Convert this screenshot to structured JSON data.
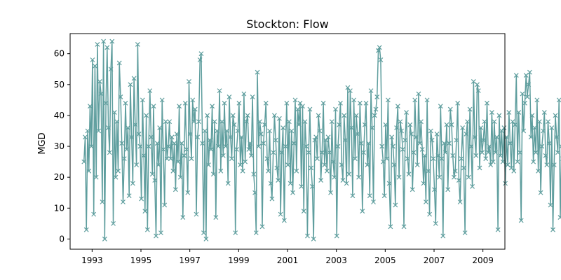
{
  "chart_data": {
    "type": "line",
    "title": "Stockton: Flow",
    "xlabel": "",
    "ylabel": "MGD",
    "xlim": [
      1992.1,
      2009.9
    ],
    "ylim": [
      -3.3,
      66.5
    ],
    "x_ticks": [
      1993,
      1995,
      1997,
      1999,
      2001,
      2003,
      2005,
      2007,
      2009
    ],
    "x_tick_labels": [
      "1993",
      "1995",
      "1997",
      "1999",
      "2001",
      "2003",
      "2005",
      "2007",
      "2009"
    ],
    "y_ticks": [
      0,
      10,
      20,
      30,
      40,
      50,
      60
    ],
    "y_tick_labels": [
      "0",
      "10",
      "20",
      "30",
      "40",
      "50",
      "60"
    ],
    "grid": false,
    "marker": "x",
    "colors": {
      "series": "#5f9e9e"
    },
    "series": [
      {
        "x_start": "1992-09",
        "x_step_years": 0.05,
        "values": [
          25,
          33,
          3,
          35,
          22,
          43,
          30,
          58,
          8,
          56,
          20,
          63,
          35,
          51,
          47,
          12,
          64,
          0,
          44,
          62,
          36,
          28,
          55,
          64,
          5,
          41,
          20,
          38,
          22,
          57,
          46,
          31,
          12,
          26,
          44,
          29,
          36,
          14,
          50,
          33,
          18,
          52,
          37,
          24,
          63,
          34,
          30,
          13,
          45,
          27,
          9,
          40,
          3,
          30,
          48,
          33,
          21,
          43,
          19,
          1,
          31,
          24,
          36,
          2,
          45,
          29,
          11,
          38,
          26,
          30,
          38,
          26,
          33,
          22,
          31,
          16,
          34,
          25,
          43,
          20,
          31,
          7,
          27,
          44,
          29,
          15,
          51,
          34,
          26,
          45,
          38,
          42,
          8,
          33,
          38,
          58,
          60,
          31,
          2,
          35,
          0,
          40,
          24,
          32,
          29,
          43,
          21,
          38,
          7,
          35,
          30,
          48,
          22,
          38,
          27,
          44,
          30,
          35,
          18,
          46,
          33,
          26,
          40,
          37,
          2,
          29,
          35,
          44,
          24,
          33,
          22,
          47,
          25,
          38,
          40,
          29,
          31,
          27,
          46,
          21,
          15,
          2,
          54,
          30,
          38,
          34,
          4,
          31,
          37,
          44,
          26,
          22,
          35,
          18,
          13,
          28,
          40,
          32,
          23,
          19,
          39,
          8,
          28,
          36,
          6,
          30,
          44,
          24,
          38,
          18,
          35,
          15,
          31,
          45,
          22,
          42,
          37,
          44,
          17,
          43,
          9,
          38,
          30,
          1,
          28,
          42,
          23,
          17,
          0,
          32,
          33,
          26,
          40,
          35,
          19,
          28,
          44,
          24,
          32,
          22,
          33,
          28,
          15,
          38,
          25,
          20,
          42,
          1,
          30,
          37,
          44,
          24,
          19,
          40,
          32,
          18,
          49,
          21,
          48,
          36,
          14,
          45,
          26,
          40,
          34,
          20,
          44,
          31,
          9,
          28,
          37,
          44,
          24,
          31,
          14,
          48,
          36,
          12,
          40,
          42,
          46,
          61,
          62,
          58,
          30,
          25,
          14,
          37,
          26,
          45,
          18,
          4,
          33,
          30,
          24,
          11,
          36,
          43,
          20,
          38,
          35,
          29,
          4,
          32,
          41,
          26,
          21,
          37,
          34,
          16,
          28,
          45,
          33,
          24,
          47,
          31,
          38,
          29,
          18,
          27,
          12,
          45,
          22,
          8,
          35,
          32,
          26,
          16,
          5,
          34,
          27,
          20,
          43,
          26,
          1,
          31,
          28,
          37,
          16,
          31,
          42,
          37,
          27,
          20,
          22,
          32,
          44,
          19,
          12,
          26,
          36,
          23,
          2,
          34,
          38,
          20,
          42,
          30,
          17,
          51,
          33,
          27,
          50,
          48,
          23,
          36,
          28,
          32,
          38,
          26,
          44,
          28,
          30,
          24,
          41,
          25,
          38,
          28,
          33,
          3,
          40,
          27,
          35,
          25,
          36,
          18,
          33,
          24,
          41,
          31,
          23,
          38,
          22,
          37,
          53,
          25,
          41,
          28,
          6,
          47,
          35,
          44,
          53,
          46,
          50,
          54,
          33,
          40,
          25,
          36,
          28,
          45,
          22,
          38,
          15,
          30,
          35,
          41,
          27,
          24,
          38,
          31,
          11,
          36,
          3,
          24,
          40,
          33,
          28,
          45,
          7,
          30,
          26,
          22,
          44,
          35,
          40,
          18,
          38,
          29,
          9,
          1,
          33,
          25,
          31,
          43,
          22,
          30,
          12,
          35,
          26,
          10,
          40,
          32,
          21,
          38,
          4,
          28,
          22,
          29,
          31,
          24,
          41,
          26,
          18,
          33,
          23,
          27,
          31,
          20,
          33,
          26,
          30,
          28,
          22,
          6,
          24,
          33,
          29,
          14,
          31,
          21,
          26,
          18,
          33,
          28,
          8,
          43,
          36,
          22,
          40,
          42,
          30,
          17,
          23,
          33,
          40,
          28,
          12,
          31,
          24,
          29,
          7,
          33,
          27,
          22,
          30,
          33,
          19,
          26,
          1,
          29,
          30,
          24,
          31,
          18,
          33,
          26,
          27,
          34,
          20,
          31,
          25,
          21,
          28,
          8,
          33,
          25,
          20,
          27,
          11,
          33,
          28,
          30,
          24,
          1,
          39,
          27,
          21,
          29,
          33,
          36,
          22,
          28,
          30,
          5,
          24,
          33,
          29,
          18,
          32,
          27,
          26,
          33,
          21,
          29,
          14,
          31,
          33,
          23,
          27,
          2,
          30,
          26,
          33,
          28,
          3,
          32,
          24,
          30,
          33,
          34,
          28,
          0,
          33,
          26,
          30
        ]
      }
    ]
  }
}
